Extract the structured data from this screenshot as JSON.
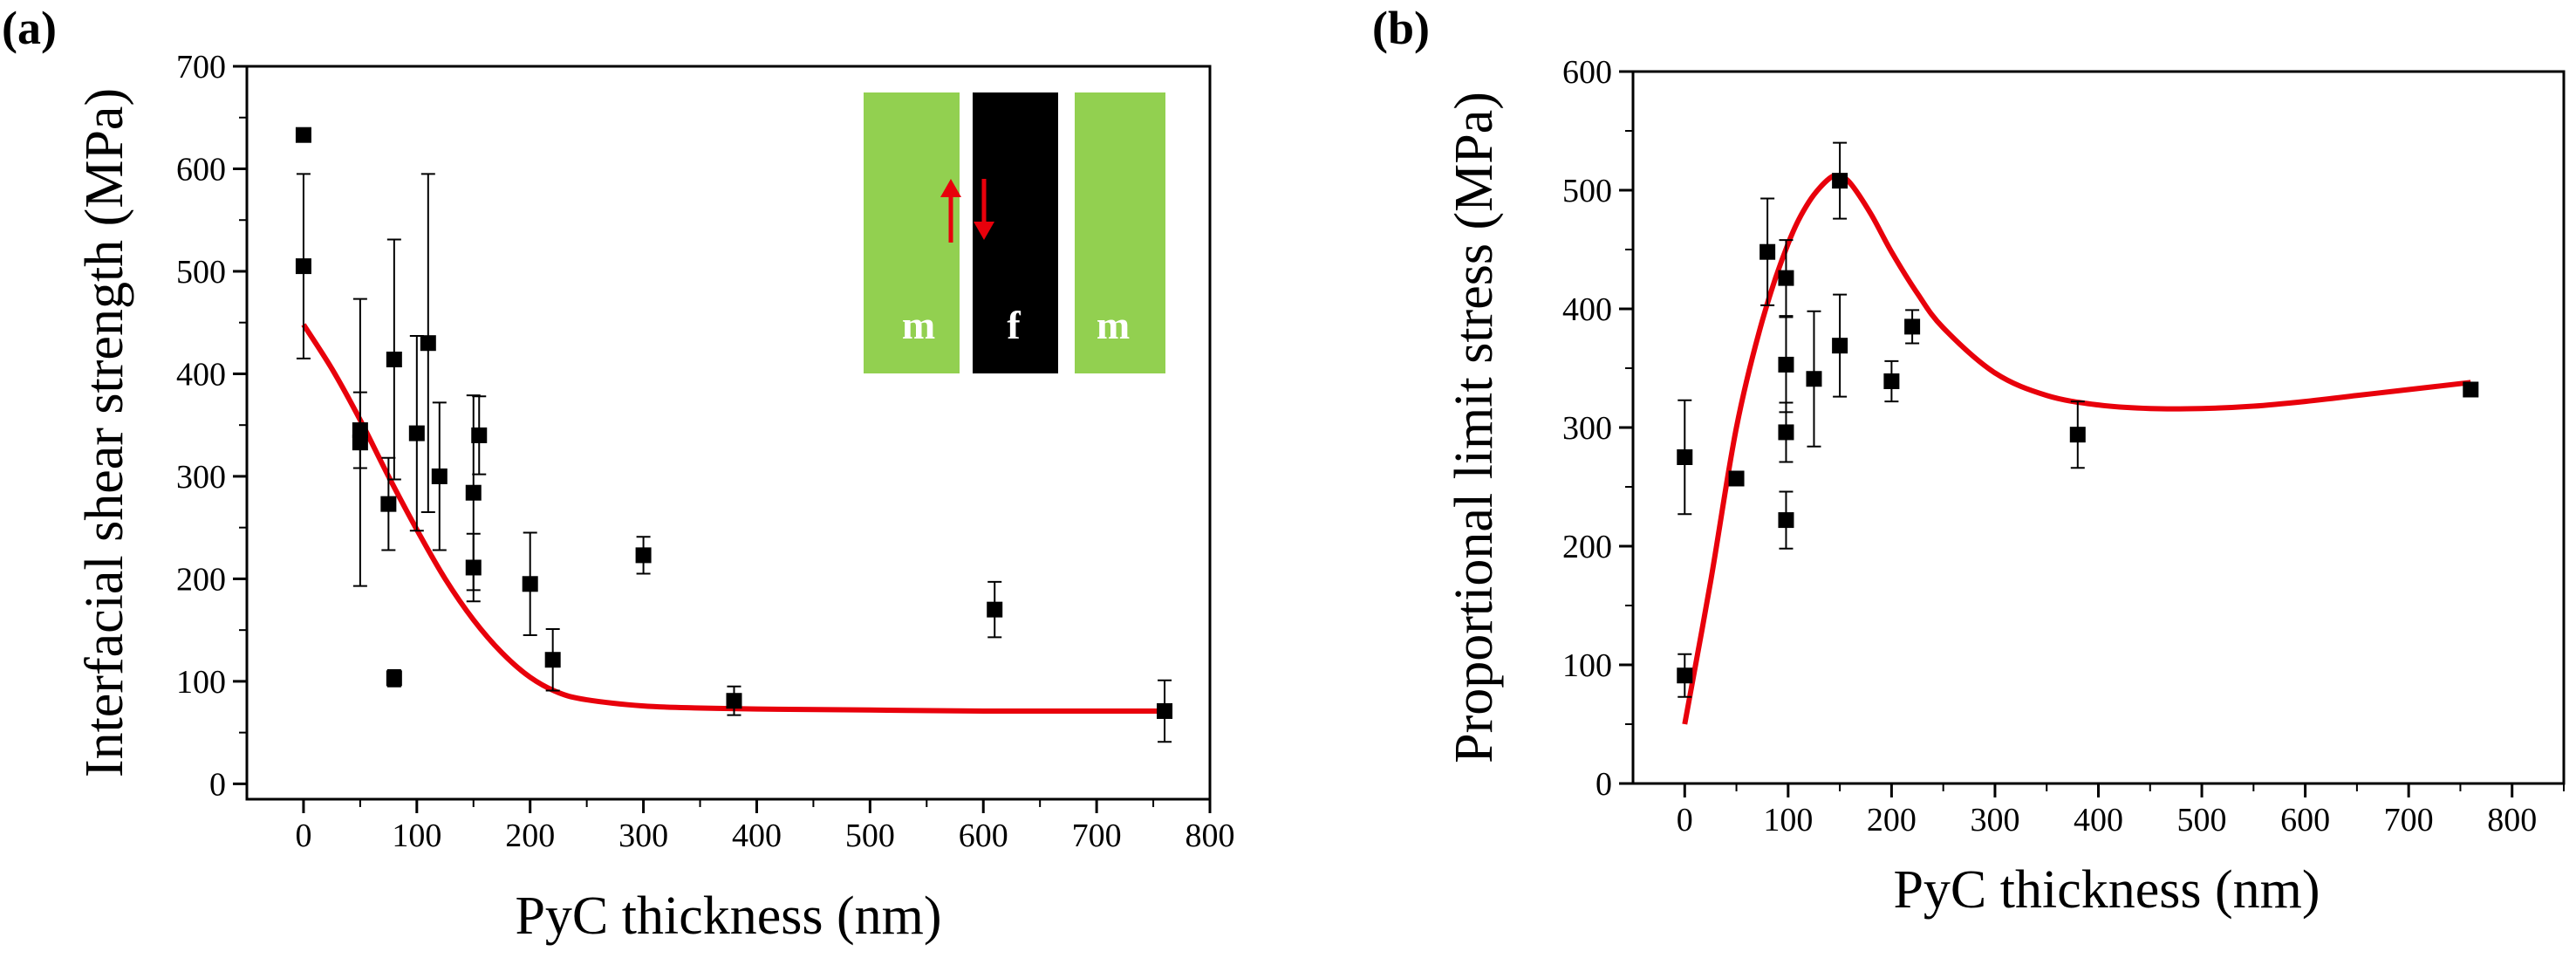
{
  "figure": {
    "panels": [
      "(a)",
      "(b)"
    ]
  },
  "inset": {
    "labels": [
      "m",
      "f",
      "m"
    ],
    "matrix_color": "#92d050",
    "fiber_color": "#000000",
    "arrow_color": "#e8000b"
  },
  "colors": {
    "fit_curve": "#e8000b",
    "points": "#000000"
  },
  "chart_data": [
    {
      "type": "scatter",
      "panel": "(a)",
      "xlabel": "PyC thickness (nm)",
      "ylabel": "Interfacial shear strength (MPa)",
      "xlim": [
        -50,
        800
      ],
      "ylim": [
        -15,
        700
      ],
      "xticks": [
        0,
        100,
        200,
        300,
        400,
        500,
        600,
        700,
        800
      ],
      "yticks": [
        0,
        100,
        200,
        300,
        400,
        500,
        600,
        700
      ],
      "points": [
        {
          "x": 0,
          "y": 633,
          "err": 0
        },
        {
          "x": 0,
          "y": 505,
          "err": 90
        },
        {
          "x": 50,
          "y": 345,
          "err": 37
        },
        {
          "x": 50,
          "y": 333,
          "err": 140
        },
        {
          "x": 75,
          "y": 273,
          "err": 45
        },
        {
          "x": 80,
          "y": 414,
          "err": 117
        },
        {
          "x": 80,
          "y": 103,
          "err": 8
        },
        {
          "x": 100,
          "y": 342,
          "err": 95
        },
        {
          "x": 110,
          "y": 430,
          "err": 165
        },
        {
          "x": 120,
          "y": 300,
          "err": 72
        },
        {
          "x": 150,
          "y": 284,
          "err": 95
        },
        {
          "x": 150,
          "y": 211,
          "err": 33
        },
        {
          "x": 155,
          "y": 340,
          "err": 38
        },
        {
          "x": 200,
          "y": 195,
          "err": 50
        },
        {
          "x": 220,
          "y": 121,
          "err": 30
        },
        {
          "x": 300,
          "y": 223,
          "err": 18
        },
        {
          "x": 380,
          "y": 81,
          "err": 14
        },
        {
          "x": 610,
          "y": 170,
          "err": 27
        },
        {
          "x": 760,
          "y": 71,
          "err": 30
        }
      ],
      "fit_curve": {
        "x": [
          0,
          25,
          50,
          75,
          100,
          125,
          150,
          175,
          200,
          225,
          250,
          300,
          350,
          400,
          500,
          600,
          700,
          760
        ],
        "y": [
          448,
          405,
          355,
          300,
          248,
          200,
          160,
          128,
          104,
          89,
          82,
          76,
          74,
          73,
          72,
          71,
          71,
          71
        ]
      }
    },
    {
      "type": "scatter",
      "panel": "(b)",
      "xlabel": "PyC thickness (nm)",
      "ylabel": "Proportional limit stress (MPa)",
      "xlim": [
        -50,
        850
      ],
      "ylim": [
        0,
        600
      ],
      "xticks": [
        0,
        100,
        200,
        300,
        400,
        500,
        600,
        700,
        800
      ],
      "yticks": [
        0,
        100,
        200,
        300,
        400,
        500,
        600
      ],
      "points": [
        {
          "x": 0,
          "y": 275,
          "err": 48
        },
        {
          "x": 0,
          "y": 91,
          "err": 18
        },
        {
          "x": 50,
          "y": 257,
          "err": 0
        },
        {
          "x": 80,
          "y": 448,
          "err": 45
        },
        {
          "x": 98,
          "y": 426,
          "err": 32
        },
        {
          "x": 98,
          "y": 353,
          "err": 40
        },
        {
          "x": 98,
          "y": 296,
          "err": 25
        },
        {
          "x": 98,
          "y": 222,
          "err": 24
        },
        {
          "x": 125,
          "y": 341,
          "err": 57
        },
        {
          "x": 150,
          "y": 508,
          "err": 32
        },
        {
          "x": 150,
          "y": 369,
          "err": 43
        },
        {
          "x": 200,
          "y": 339,
          "err": 17
        },
        {
          "x": 220,
          "y": 385,
          "err": 14
        },
        {
          "x": 380,
          "y": 294,
          "err": 28
        },
        {
          "x": 760,
          "y": 332,
          "err": 0
        }
      ],
      "fit_curve": {
        "x": [
          0,
          25,
          50,
          75,
          100,
          120,
          140,
          150,
          160,
          180,
          200,
          225,
          250,
          300,
          350,
          400,
          450,
          500,
          550,
          600,
          650,
          700,
          760
        ],
        "y": [
          50,
          170,
          300,
          390,
          455,
          490,
          510,
          511,
          506,
          480,
          448,
          413,
          384,
          346,
          327,
          319,
          316,
          316,
          318,
          322,
          327,
          332,
          338
        ]
      }
    }
  ]
}
